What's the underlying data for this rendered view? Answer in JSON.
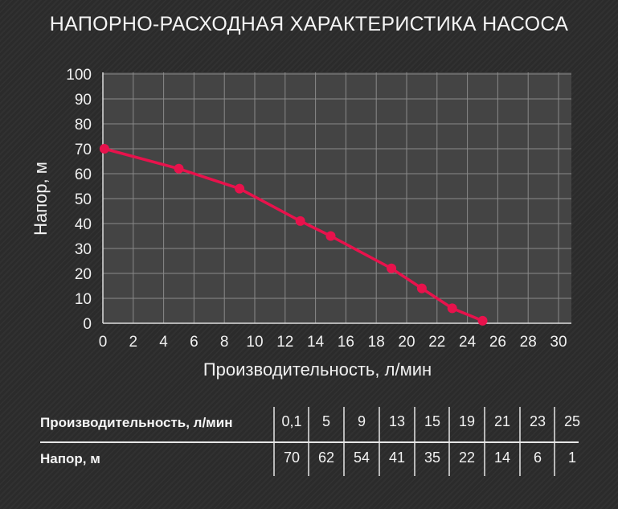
{
  "title": "НАПОРНО-РАСХОДНАЯ ХАРАКТЕРИСТИКА НАСОСА",
  "chart_data": {
    "type": "line",
    "xlabel": "Производительность, л/мин",
    "ylabel": "Напор, м",
    "xlim": [
      0,
      30
    ],
    "ylim": [
      0,
      100
    ],
    "xticks": [
      0,
      2,
      4,
      6,
      8,
      10,
      12,
      14,
      16,
      18,
      20,
      22,
      24,
      26,
      28,
      30
    ],
    "yticks": [
      0,
      10,
      20,
      30,
      40,
      50,
      60,
      70,
      80,
      90,
      100
    ],
    "grid": true,
    "series": [
      {
        "x": [
          0.1,
          5,
          9,
          13,
          15,
          19,
          21,
          23,
          25
        ],
        "y": [
          70,
          62,
          54,
          41,
          35,
          22,
          14,
          6,
          1
        ],
        "color": "#e8124c"
      }
    ]
  },
  "table": {
    "rows": [
      {
        "label": "Производительность, л/мин",
        "values": [
          "0,1",
          "5",
          "9",
          "13",
          "15",
          "19",
          "21",
          "23",
          "25"
        ]
      },
      {
        "label": "Напор, м",
        "values": [
          "70",
          "62",
          "54",
          "41",
          "35",
          "22",
          "14",
          "6",
          "1"
        ]
      }
    ]
  },
  "colors": {
    "background": "#2c2c2c",
    "plot_area": "#444444",
    "grid": "#8a8a8a",
    "line": "#e8124c"
  }
}
